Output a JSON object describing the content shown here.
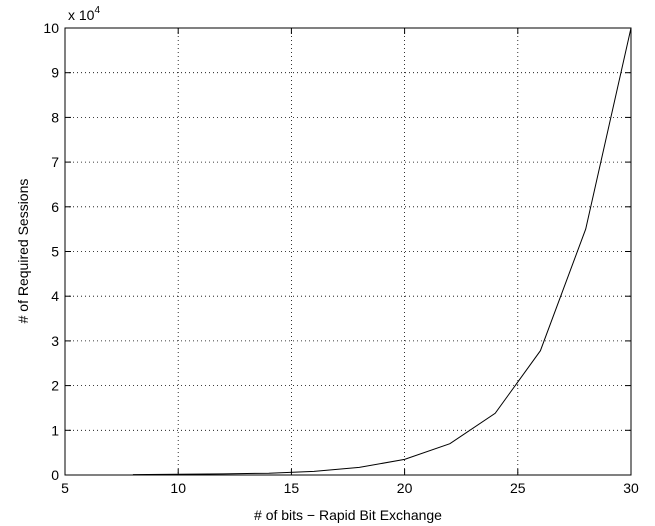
{
  "chart_data": {
    "type": "line",
    "title": "",
    "xlabel": "# of bits − Rapid Bit Exchange",
    "ylabel": "# of Required Sessions",
    "y_multiplier_label": "x 10",
    "y_multiplier_exponent": "4",
    "xlim": [
      5,
      30
    ],
    "ylim": [
      0,
      10
    ],
    "xticks": [
      5,
      10,
      15,
      20,
      25,
      30
    ],
    "yticks": [
      0,
      1,
      2,
      3,
      4,
      5,
      6,
      7,
      8,
      9,
      10
    ],
    "grid": true,
    "grid_style": "dotted",
    "line_color": "#000000",
    "series": [
      {
        "x": [
          8,
          10,
          12,
          14,
          16,
          18,
          20,
          22,
          24,
          26,
          28,
          30
        ],
        "y": [
          0.01,
          0.015,
          0.025,
          0.04,
          0.08,
          0.17,
          0.35,
          0.7,
          1.38,
          2.78,
          5.5,
          10.0
        ]
      }
    ]
  }
}
